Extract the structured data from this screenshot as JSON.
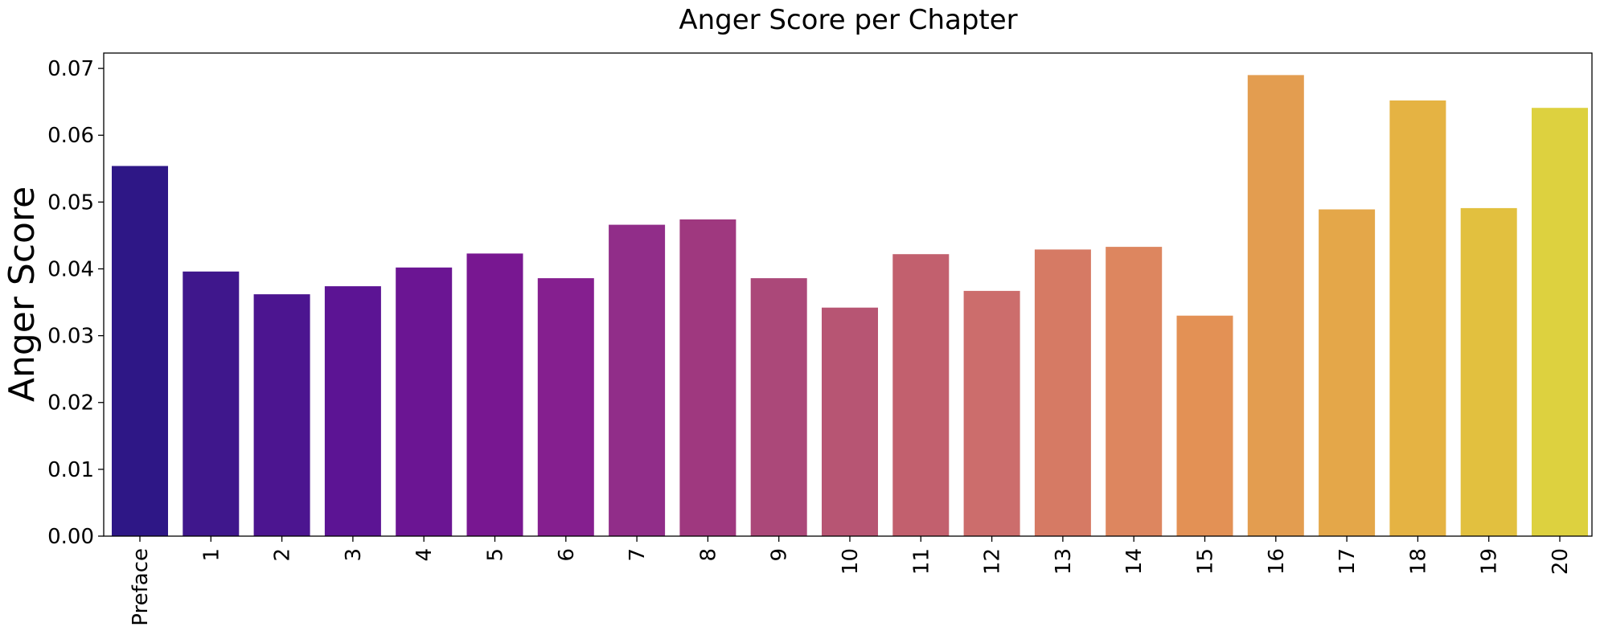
{
  "chart_data": {
    "type": "bar",
    "title": "Anger Score per Chapter",
    "xlabel": "",
    "ylabel": "Anger Score",
    "ylim": [
      0,
      0.0723
    ],
    "yticks": [
      "0.00",
      "0.01",
      "0.02",
      "0.03",
      "0.04",
      "0.05",
      "0.06",
      "0.07"
    ],
    "categories": [
      "Preface",
      "1",
      "2",
      "3",
      "4",
      "5",
      "6",
      "7",
      "8",
      "9",
      "10",
      "11",
      "12",
      "13",
      "14",
      "15",
      "16",
      "17",
      "18",
      "19",
      "20"
    ],
    "values": [
      0.0554,
      0.0396,
      0.0362,
      0.0374,
      0.0402,
      0.0423,
      0.0386,
      0.0466,
      0.0474,
      0.0386,
      0.0342,
      0.0422,
      0.0367,
      0.0429,
      0.0433,
      0.033,
      0.069,
      0.0489,
      0.0652,
      0.0491,
      0.0641
    ],
    "colors": [
      "#2e1786",
      "#3f178c",
      "#4c1590",
      "#5c1494",
      "#6b1593",
      "#781791",
      "#851f8f",
      "#912d89",
      "#9f387f",
      "#ab4879",
      "#b75573",
      "#c2606e",
      "#cc6d6c",
      "#d67a64",
      "#dd865f",
      "#e39155",
      "#e39d50",
      "#e4a749",
      "#e5b343",
      "#e2c03f",
      "#ddd13f"
    ],
    "grid": false,
    "legend": "none"
  }
}
